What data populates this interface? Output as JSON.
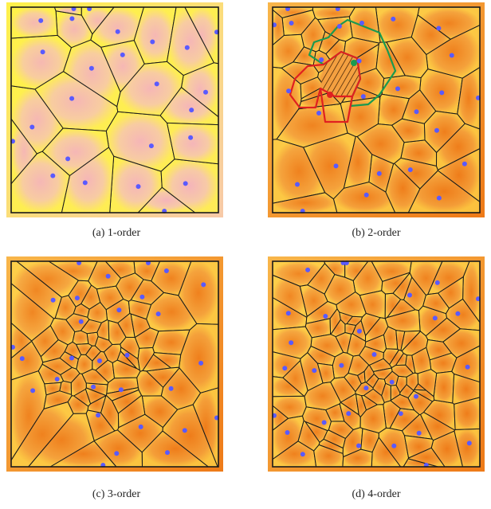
{
  "figure": {
    "panels": [
      {
        "id": "a",
        "caption": "(a) 1-order",
        "order": 1
      },
      {
        "id": "b",
        "caption": "(b) 2-order",
        "order": 2
      },
      {
        "id": "c",
        "caption": "(c) 3-order",
        "order": 3
      },
      {
        "id": "d",
        "caption": "(d) 4-order",
        "order": 4
      }
    ],
    "colors": {
      "site": "#5a5aff",
      "edge": "#1a1a1a",
      "highlight_red": "#e02020",
      "highlight_green": "#1a9a50",
      "order1_base": "#f7c9a8",
      "order1_glow": "#fff14a",
      "orderN_base": "#f5a640",
      "orderN_dark": "#ee7a18"
    }
  }
}
